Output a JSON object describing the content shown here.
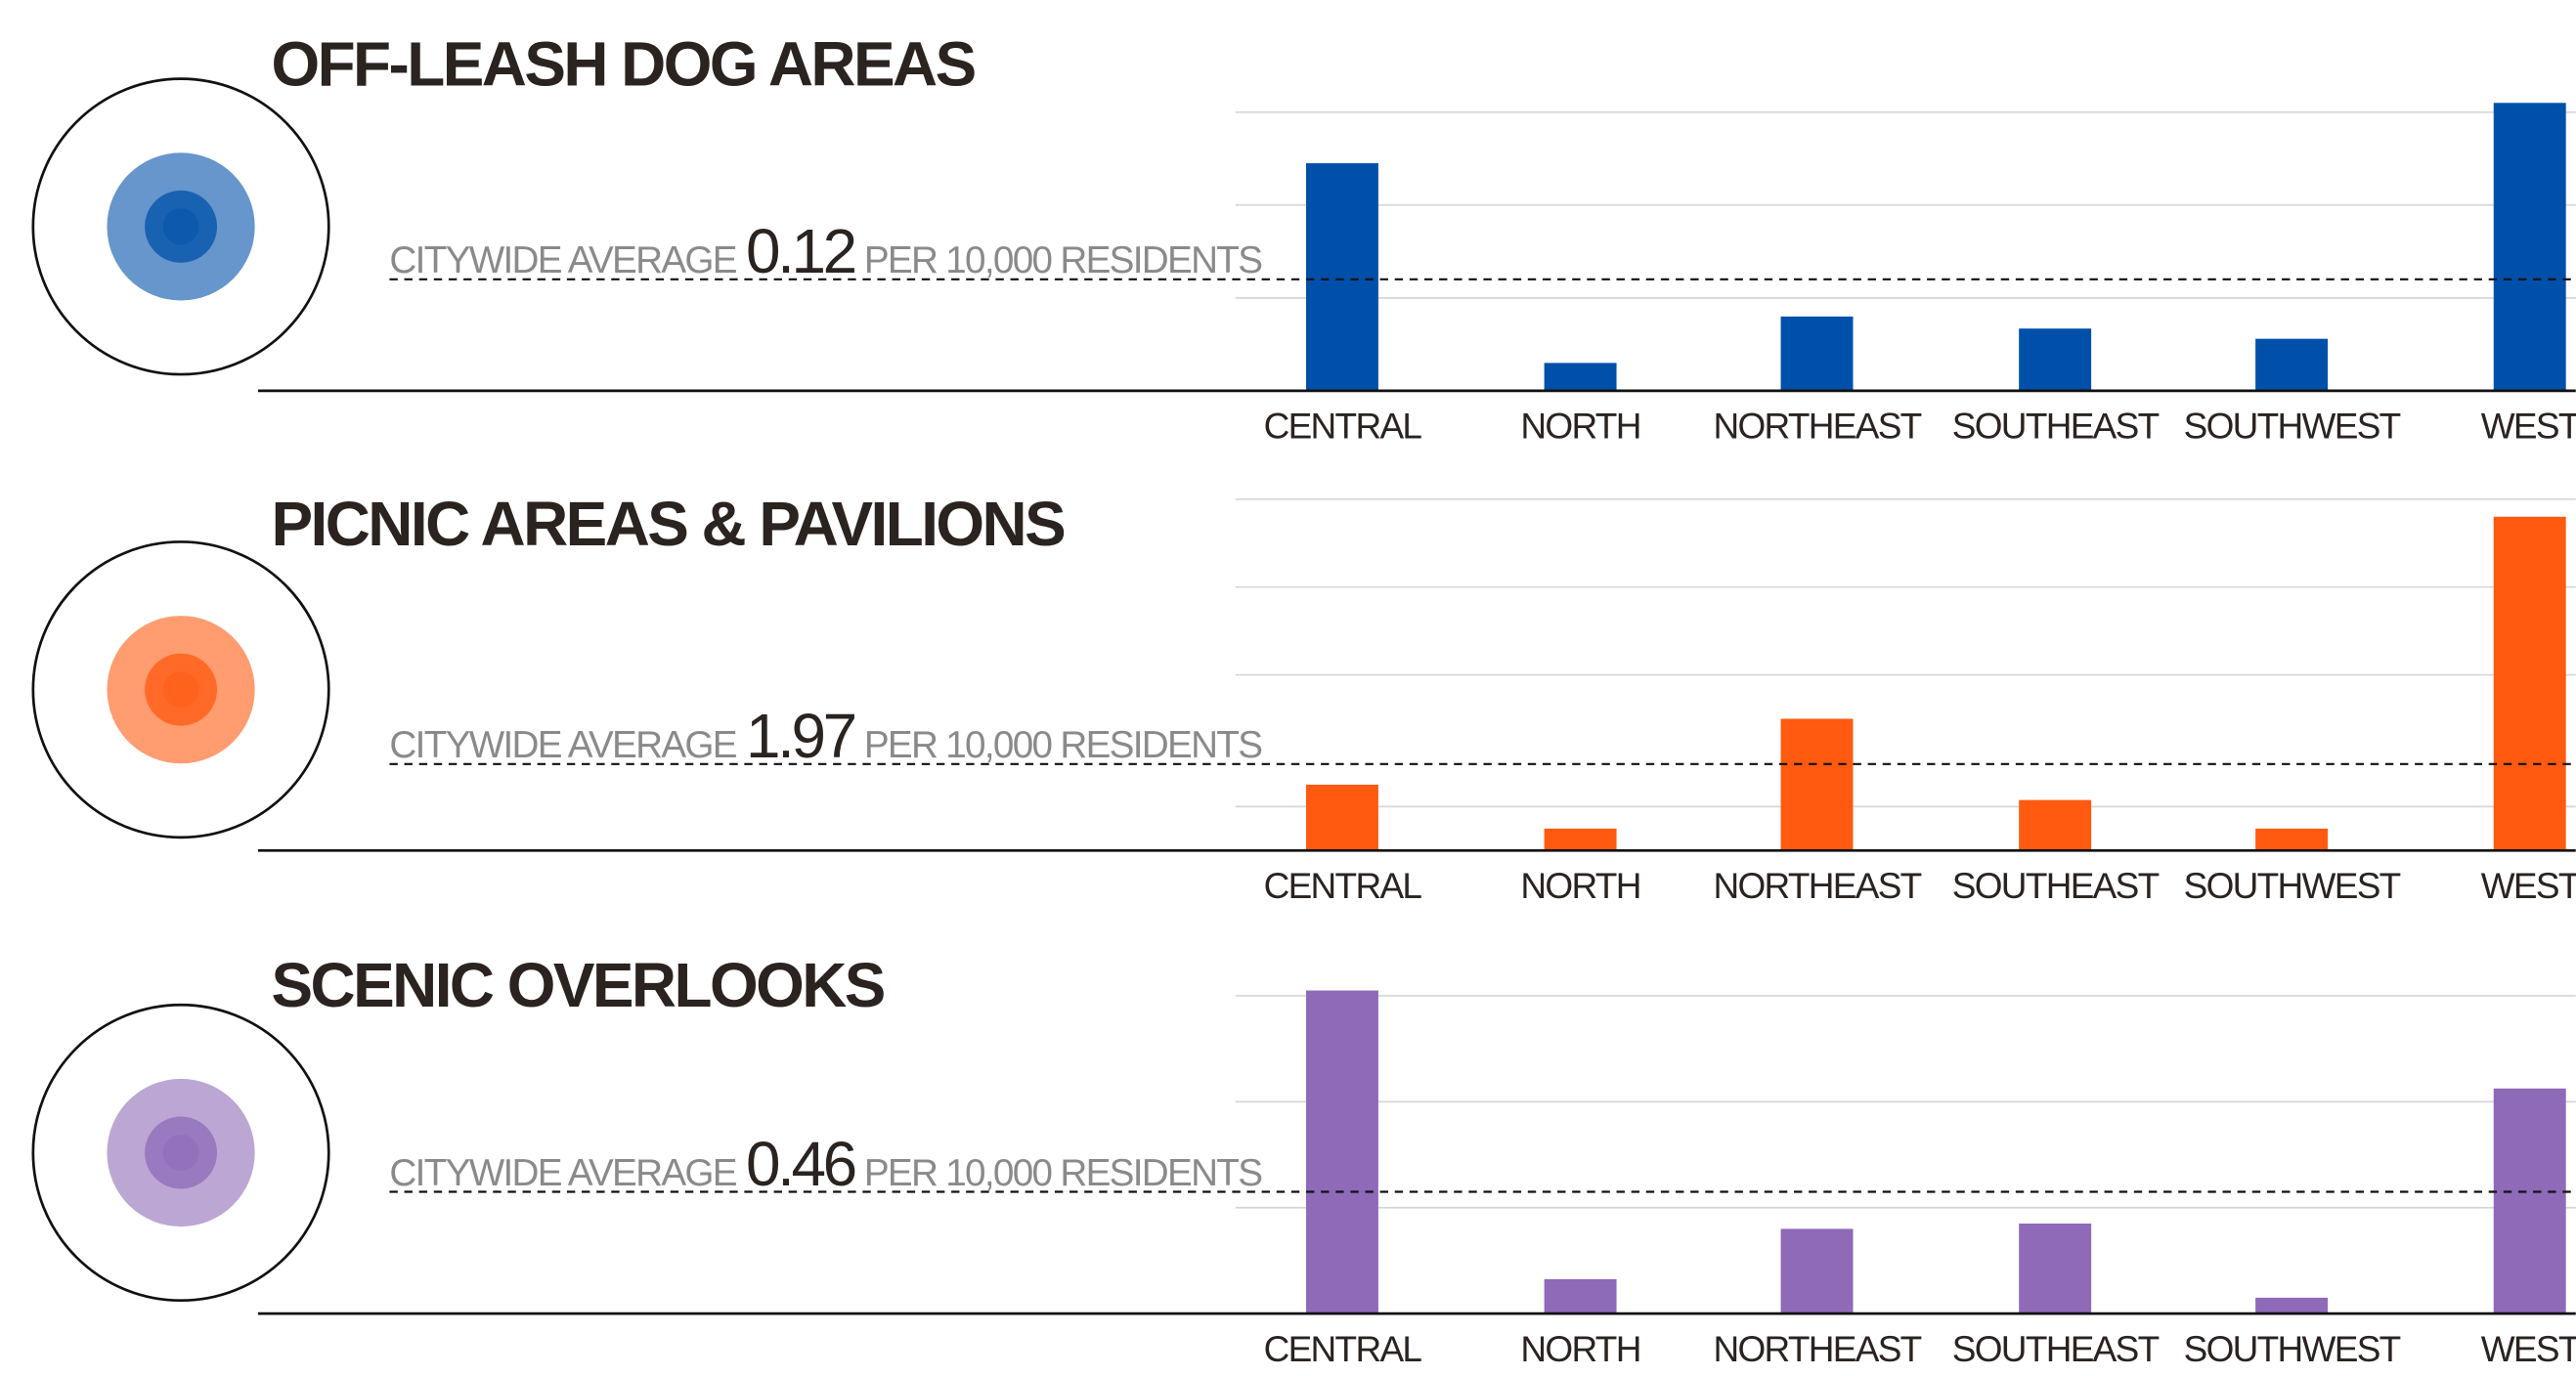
{
  "chart_data": [
    {
      "type": "bar",
      "title": "OFF-LEASH DOG AREAS",
      "categories": [
        "CENTRAL",
        "NORTH",
        "NORTHEAST",
        "SOUTHEAST",
        "SOUTHWEST",
        "WEST"
      ],
      "values": [
        0.245,
        0.03,
        0.08,
        0.067,
        0.056,
        0.31
      ],
      "color": "#0050aa",
      "ylim": [
        0,
        0.32
      ],
      "yticks": [
        0.1,
        0.2,
        0.3
      ],
      "grid": true,
      "average_prefix": "CITYWIDE AVERAGE",
      "average": 0.12,
      "average_suffix": "PER 10,000 RESIDENTS"
    },
    {
      "type": "bar",
      "title": "PICNIC AREAS & PAVILIONS",
      "categories": [
        "CENTRAL",
        "NORTH",
        "NORTHEAST",
        "SOUTHEAST",
        "SOUTHWEST",
        "WEST"
      ],
      "values": [
        1.5,
        0.5,
        3.0,
        1.15,
        0.5,
        7.6
      ],
      "color": "#ff5a10",
      "ylim": [
        0,
        8
      ],
      "yticks": [
        1,
        4,
        6,
        8
      ],
      "grid": true,
      "average_prefix": "CITYWIDE AVERAGE",
      "average": 1.97,
      "average_suffix": "PER 10,000 RESIDENTS"
    },
    {
      "type": "bar",
      "title": "SCENIC OVERLOOKS",
      "categories": [
        "CENTRAL",
        "NORTH",
        "NORTHEAST",
        "SOUTHEAST",
        "SOUTHWEST",
        "WEST"
      ],
      "values": [
        1.22,
        0.13,
        0.32,
        0.34,
        0.06,
        0.85
      ],
      "color": "#8e6ab8",
      "ylim": [
        0,
        1.24
      ],
      "yticks": [
        0.4,
        0.8,
        1.2
      ],
      "grid": true,
      "average_prefix": "CITYWIDE AVERAGE",
      "average": 0.46,
      "average_suffix": "PER 10,000 RESIDENTS"
    }
  ]
}
